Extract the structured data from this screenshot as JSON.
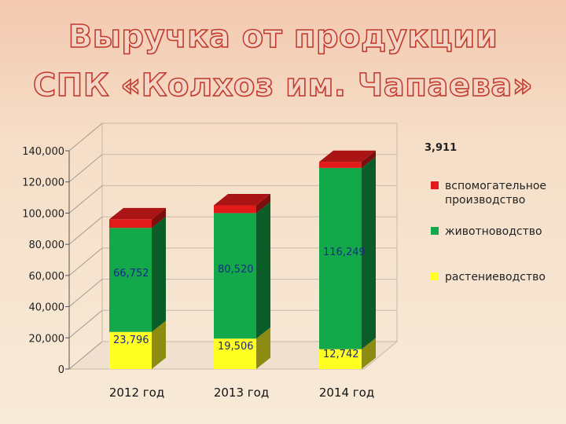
{
  "title": {
    "line1": "Выручка от продукции",
    "line2": "СПК «Колхоз им. Чапаева»"
  },
  "colors": {
    "title_stroke": "#c0392b",
    "vspomogatelnoe": "#e31a1a",
    "zhivotnovodstvo": "#13a84a",
    "rastenievodstvo": "#ffff22",
    "label_text": "#1a2a88",
    "top_label_text": "#222222"
  },
  "chart_data": {
    "type": "bar",
    "stacked": true,
    "three_d": true,
    "categories": [
      "2012 год",
      "2013 год",
      "2014 год"
    ],
    "series": [
      {
        "name": "растениеводство",
        "values": [
          23796,
          19506,
          12742
        ]
      },
      {
        "name": "животноводство",
        "values": [
          66752,
          80520,
          116249
        ]
      },
      {
        "name": "вспомогательное производство",
        "values": [
          5500,
          5000,
          3911
        ]
      }
    ],
    "data_labels": {
      "растениеводство": [
        "23,796",
        "19,506",
        "12,742"
      ],
      "животноводство": [
        "66,752",
        "80,520",
        "116,249"
      ],
      "вспомогательное производство": [
        "",
        "",
        "3,911"
      ]
    },
    "ylim": [
      0,
      140000
    ],
    "yticks": [
      0,
      20000,
      40000,
      60000,
      80000,
      100000,
      120000,
      140000
    ],
    "ytick_labels": [
      "0",
      "20,000",
      "40,000",
      "60,000",
      "80,000",
      "100,000",
      "120,000",
      "140,000"
    ],
    "xlabel": "",
    "ylabel": "",
    "grid": true,
    "legend": {
      "placement": "right",
      "entries": [
        "вспомогательное производство",
        "животноводство",
        "растениеводство"
      ]
    }
  }
}
